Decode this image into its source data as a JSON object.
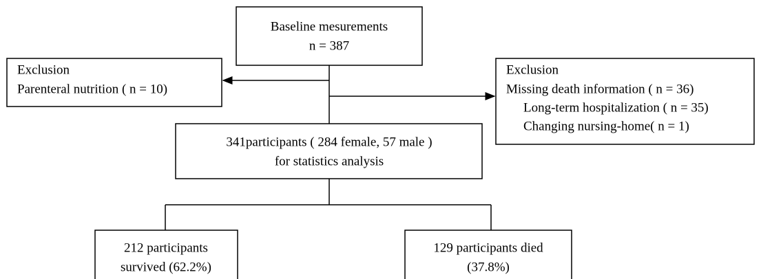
{
  "nodes": [
    {
      "lines": [
        "Baseline mesurements",
        "n = 387"
      ]
    },
    {
      "lines": [
        "Exclusion",
        "Parenteral nutrition ( n = 10)"
      ]
    },
    {
      "lines": [
        "Exclusion",
        "Missing death information ( n = 36)",
        "Long-term hospitalization ( n = 35)",
        "Changing nursing-home( n = 1)"
      ]
    },
    {
      "lines": [
        "341participants ( 284 female, 57 male )",
        "for statistics analysis"
      ]
    },
    {
      "lines": [
        "212 participants",
        "survived (62.2%)"
      ]
    },
    {
      "lines": [
        "129 participants died",
        "(37.8%)"
      ]
    }
  ]
}
